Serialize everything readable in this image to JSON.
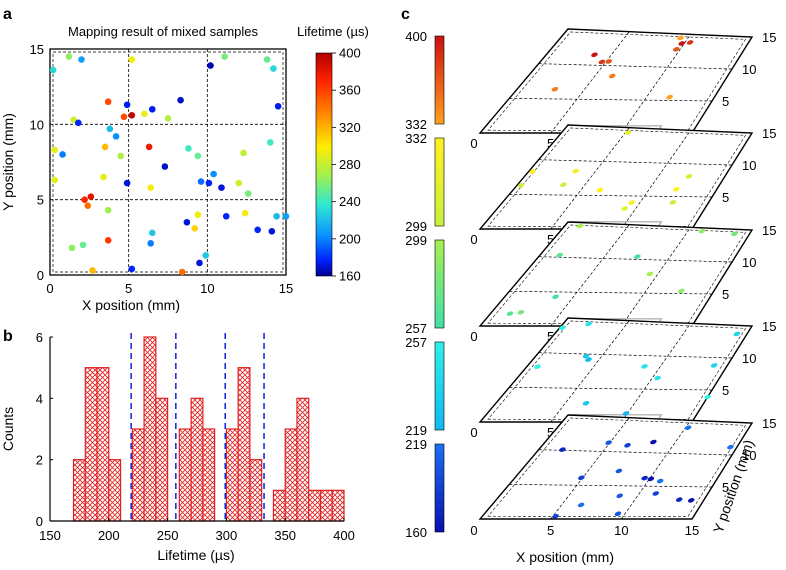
{
  "panels": {
    "a": "a",
    "b": "b",
    "c": "c"
  },
  "chart_data": [
    {
      "panel": "a",
      "type": "scatter",
      "title": "Mapping result of mixed samples",
      "xlabel": "X position (mm)",
      "ylabel": "Y position (mm)",
      "xlim": [
        0,
        15
      ],
      "ylim": [
        0,
        15
      ],
      "xticks": [
        "0",
        "5",
        "10",
        "15"
      ],
      "yticks": [
        "0",
        "5",
        "10",
        "15"
      ],
      "grid": "dashed 3x3",
      "colorbar": {
        "label": "Lifetime (µs)",
        "ticks": [
          "400",
          "360",
          "320",
          "280",
          "240",
          "200",
          "160"
        ],
        "min": 160,
        "max": 400
      },
      "points": [
        [
          0.2,
          13.6,
          245
        ],
        [
          1.2,
          14.5,
          275
        ],
        [
          2.0,
          14.3,
          225
        ],
        [
          5.2,
          14.3,
          305
        ],
        [
          10.2,
          13.9,
          170
        ],
        [
          11.1,
          14.5,
          270
        ],
        [
          13.8,
          14.3,
          265
        ],
        [
          14.2,
          13.7,
          245
        ],
        [
          3.7,
          11.5,
          365
        ],
        [
          4.9,
          11.3,
          185
        ],
        [
          5.2,
          10.6,
          395
        ],
        [
          4.7,
          10.5,
          365
        ],
        [
          6.5,
          11.0,
          185
        ],
        [
          6.0,
          10.7,
          300
        ],
        [
          1.5,
          10.3,
          295
        ],
        [
          3.8,
          9.7,
          235
        ],
        [
          4.2,
          9.2,
          220
        ],
        [
          1.8,
          10.1,
          190
        ],
        [
          7.5,
          10.4,
          285
        ],
        [
          8.3,
          11.6,
          175
        ],
        [
          14.5,
          11.2,
          185
        ],
        [
          0.3,
          8.3,
          300
        ],
        [
          0.8,
          8.0,
          215
        ],
        [
          3.5,
          8.5,
          330
        ],
        [
          4.5,
          7.9,
          285
        ],
        [
          6.3,
          8.5,
          380
        ],
        [
          8.8,
          8.4,
          255
        ],
        [
          9.4,
          7.9,
          265
        ],
        [
          12.3,
          8.1,
          290
        ],
        [
          14.0,
          8.8,
          255
        ],
        [
          7.3,
          7.2,
          175
        ],
        [
          4.9,
          6.1,
          180
        ],
        [
          3.4,
          6.5,
          300
        ],
        [
          0.3,
          6.3,
          300
        ],
        [
          2.2,
          5.0,
          375
        ],
        [
          2.6,
          5.2,
          385
        ],
        [
          2.4,
          4.6,
          355
        ],
        [
          3.7,
          4.3,
          280
        ],
        [
          6.4,
          5.8,
          305
        ],
        [
          9.6,
          6.2,
          210
        ],
        [
          10.1,
          6.1,
          190
        ],
        [
          10.4,
          6.7,
          220
        ],
        [
          10.9,
          5.8,
          180
        ],
        [
          12.0,
          6.1,
          295
        ],
        [
          12.6,
          5.4,
          270
        ],
        [
          9.4,
          4.0,
          305
        ],
        [
          8.7,
          3.5,
          180
        ],
        [
          11.2,
          3.9,
          190
        ],
        [
          12.4,
          4.1,
          305
        ],
        [
          14.4,
          3.9,
          235
        ],
        [
          15.0,
          3.9,
          225
        ],
        [
          13.2,
          3.0,
          190
        ],
        [
          14.1,
          2.9,
          180
        ],
        [
          9.2,
          3.1,
          320
        ],
        [
          6.5,
          2.8,
          240
        ],
        [
          6.4,
          2.1,
          215
        ],
        [
          1.4,
          1.8,
          275
        ],
        [
          2.1,
          2.0,
          265
        ],
        [
          3.7,
          2.3,
          370
        ],
        [
          9.9,
          1.3,
          240
        ],
        [
          9.5,
          0.8,
          180
        ],
        [
          2.7,
          0.3,
          330
        ],
        [
          5.2,
          0.4,
          190
        ],
        [
          8.4,
          0.2,
          355
        ]
      ]
    },
    {
      "panel": "b",
      "type": "bar",
      "xlabel": "Lifetime (µs)",
      "ylabel": "Counts",
      "xlim": [
        150,
        400
      ],
      "ylim": [
        0,
        6
      ],
      "xticks": [
        "150",
        "200",
        "250",
        "300",
        "350",
        "400"
      ],
      "yticks": [
        "0",
        "2",
        "4",
        "6"
      ],
      "bin_width": 10,
      "bins": [
        {
          "start": 170,
          "count": 2
        },
        {
          "start": 180,
          "count": 5
        },
        {
          "start": 190,
          "count": 5
        },
        {
          "start": 200,
          "count": 2
        },
        {
          "start": 220,
          "count": 3
        },
        {
          "start": 230,
          "count": 6
        },
        {
          "start": 240,
          "count": 4
        },
        {
          "start": 260,
          "count": 3
        },
        {
          "start": 270,
          "count": 4
        },
        {
          "start": 280,
          "count": 3
        },
        {
          "start": 300,
          "count": 3
        },
        {
          "start": 310,
          "count": 5
        },
        {
          "start": 320,
          "count": 2
        },
        {
          "start": 340,
          "count": 1
        },
        {
          "start": 350,
          "count": 3
        },
        {
          "start": 360,
          "count": 4
        },
        {
          "start": 370,
          "count": 1
        },
        {
          "start": 380,
          "count": 1
        },
        {
          "start": 390,
          "count": 1
        }
      ],
      "separators": [
        219,
        257,
        299,
        332
      ]
    },
    {
      "panel": "c",
      "type": "scatter",
      "xlabel": "X position (mm)",
      "ylabel": "Y position (mm)",
      "xticks": [
        "0",
        "5",
        "10",
        "15"
      ],
      "yticks": [
        "5",
        "10",
        "15"
      ],
      "layers": [
        {
          "range": [
            "332",
            "400"
          ],
          "color_top": "#cc1010",
          "color_bottom": "#ffa020",
          "points": [
            [
              3.7,
              11.5
            ],
            [
              4.7,
              10.5
            ],
            [
              5.2,
              10.6
            ],
            [
              6.3,
              8.5
            ],
            [
              9.4,
              14.4
            ],
            [
              9.8,
              13.6
            ],
            [
              10.4,
              13.8
            ],
            [
              9.7,
              12.7
            ],
            [
              2.8,
              6.4
            ],
            [
              11.7,
              5.5
            ]
          ]
        },
        {
          "range": [
            "299",
            "332"
          ],
          "color_top": "#fff020",
          "color_bottom": "#c8f040",
          "points": [
            [
              0.3,
              8.3
            ],
            [
              3.5,
              8.5
            ],
            [
              5.2,
              14.3
            ],
            [
              0.3,
              6.3
            ],
            [
              3.4,
              6.5
            ],
            [
              6.4,
              5.8
            ],
            [
              9.4,
              4.0
            ],
            [
              9.2,
              3.1
            ],
            [
              12.3,
              8.1
            ],
            [
              12.4,
              4.1
            ],
            [
              12.0,
              6.1
            ]
          ]
        },
        {
          "range": [
            "257",
            "299"
          ],
          "color_top": "#a8ee50",
          "color_bottom": "#40e0a8",
          "points": [
            [
              1.2,
              14.5
            ],
            [
              11.1,
              14.5
            ],
            [
              13.8,
              14.3
            ],
            [
              1.5,
              10.3
            ],
            [
              7.5,
              10.4
            ],
            [
              9.4,
              7.9
            ],
            [
              12.6,
              5.4
            ],
            [
              2.1,
              2.0
            ],
            [
              1.4,
              1.8
            ],
            [
              3.7,
              4.3
            ]
          ]
        },
        {
          "range": [
            "219",
            "257"
          ],
          "color_top": "#30f0e8",
          "color_bottom": "#10b8f0",
          "points": [
            [
              0.2,
              13.6
            ],
            [
              2.0,
              14.3
            ],
            [
              14.2,
              13.7
            ],
            [
              3.8,
              9.7
            ],
            [
              4.2,
              9.2
            ],
            [
              0.8,
              8.0
            ],
            [
              8.8,
              8.4
            ],
            [
              14.0,
              8.8
            ],
            [
              6.5,
              2.8
            ],
            [
              9.9,
              1.3
            ],
            [
              15.0,
              3.9
            ],
            [
              10.4,
              6.7
            ]
          ]
        },
        {
          "range": [
            "160",
            "219"
          ],
          "color_top": "#1c70f0",
          "color_bottom": "#0810b0",
          "points": [
            [
              10.2,
              13.9
            ],
            [
              4.9,
              11.3
            ],
            [
              6.5,
              11.0
            ],
            [
              1.8,
              10.1
            ],
            [
              8.3,
              11.6
            ],
            [
              14.5,
              11.2
            ],
            [
              7.3,
              7.2
            ],
            [
              4.9,
              6.1
            ],
            [
              9.6,
              6.2
            ],
            [
              10.1,
              6.1
            ],
            [
              10.9,
              5.8
            ],
            [
              8.7,
              3.5
            ],
            [
              11.2,
              3.9
            ],
            [
              13.2,
              3.0
            ],
            [
              14.1,
              2.9
            ],
            [
              6.4,
              2.1
            ],
            [
              9.5,
              0.8
            ],
            [
              5.2,
              0.4
            ]
          ]
        }
      ]
    }
  ]
}
